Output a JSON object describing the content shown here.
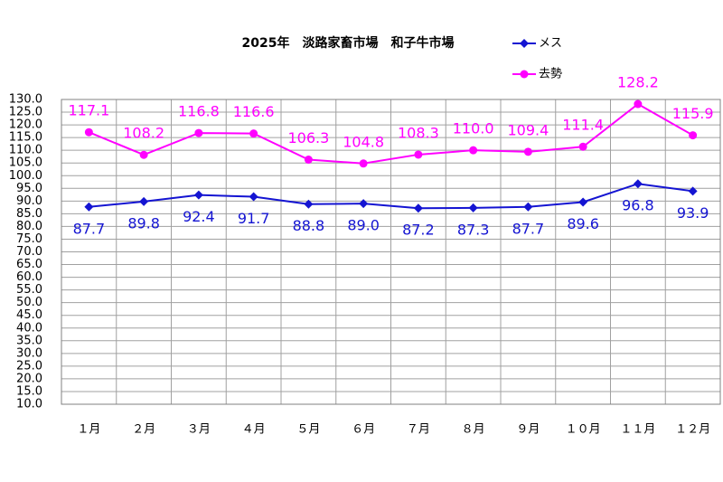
{
  "chart_data": {
    "type": "line",
    "title": "2025年　淡路家畜市場　和子牛市場",
    "categories": [
      "１月",
      "２月",
      "３月",
      "４月",
      "５月",
      "６月",
      "７月",
      "８月",
      "９月",
      "１０月",
      "１１月",
      "１２月"
    ],
    "series": [
      {
        "name": "メス",
        "color": "#1414d2",
        "marker": "diamond",
        "values": [
          87.7,
          89.8,
          92.4,
          91.7,
          88.8,
          89.0,
          87.2,
          87.3,
          87.7,
          89.6,
          96.8,
          93.9
        ],
        "value_labels": [
          "87.7",
          "89.8",
          "92.4",
          "91.7",
          "88.8",
          "89.0",
          "87.2",
          "87.3",
          "87.7",
          "89.6",
          "96.8",
          "93.9"
        ]
      },
      {
        "name": "去勢",
        "color": "#ff00ff",
        "marker": "circle",
        "values": [
          117.1,
          108.2,
          116.8,
          116.6,
          106.3,
          104.8,
          108.3,
          110.0,
          109.4,
          111.4,
          128.2,
          115.9
        ],
        "value_labels": [
          "117.1",
          "108.2",
          "116.8",
          "116.6",
          "106.3",
          "104.8",
          "108.3",
          "110.0",
          "109.4",
          "111.4",
          "128.2",
          "115.9"
        ]
      }
    ],
    "ylim": [
      10,
      130
    ],
    "yticks": [
      {
        "value": 10,
        "label": "10.0"
      },
      {
        "value": 15,
        "label": "15.0"
      },
      {
        "value": 20,
        "label": "20.0"
      },
      {
        "value": 25,
        "label": "25.0"
      },
      {
        "value": 30,
        "label": "30.0"
      },
      {
        "value": 35,
        "label": "35.0"
      },
      {
        "value": 40,
        "label": "40.0"
      },
      {
        "value": 45,
        "label": "45.0"
      },
      {
        "value": 50,
        "label": "50.0"
      },
      {
        "value": 55,
        "label": "55.0"
      },
      {
        "value": 60,
        "label": "60.0"
      },
      {
        "value": 65,
        "label": "65.0"
      },
      {
        "value": 70,
        "label": "70.0"
      },
      {
        "value": 75,
        "label": "75.0"
      },
      {
        "value": 80,
        "label": "80.0"
      },
      {
        "value": 85,
        "label": "85.0"
      },
      {
        "value": 90,
        "label": "90.0"
      },
      {
        "value": 95,
        "label": "95.0"
      },
      {
        "value": 100,
        "label": "100.0"
      },
      {
        "value": 105,
        "label": "105.0"
      },
      {
        "value": 110,
        "label": "110.0"
      },
      {
        "value": 115,
        "label": "115.0"
      },
      {
        "value": 120,
        "label": "120.0"
      },
      {
        "value": 125,
        "label": "125.0"
      },
      {
        "value": 130,
        "label": "130.0"
      }
    ],
    "grid": true
  }
}
